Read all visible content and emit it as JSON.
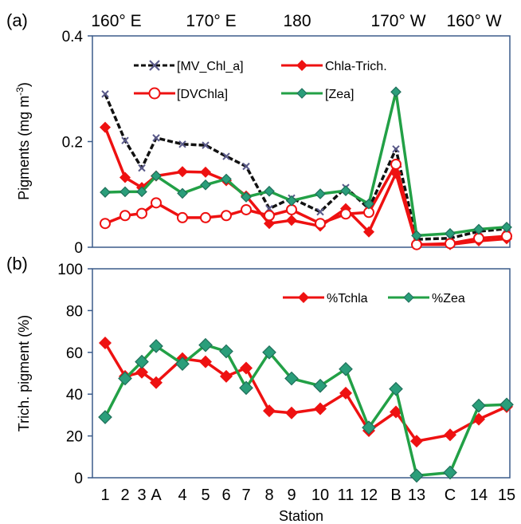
{
  "figure": {
    "top_axis_labels": [
      "160° E",
      "170° E",
      "180",
      "170° W",
      "160° W"
    ],
    "x_categories": [
      "1",
      "2",
      "3",
      "A",
      "4",
      "5",
      "6",
      "7",
      "8",
      "9",
      "10",
      "11",
      "12",
      "B",
      "13",
      "C",
      "14",
      "15"
    ],
    "xlabel": "Station",
    "colors": {
      "black": "#111111",
      "red": "#ee1111",
      "green": "#22a046",
      "cross": "#5a5a8a",
      "axis": "#3b5b8a"
    }
  },
  "chart_data": [
    {
      "type": "line",
      "panel": "(a)",
      "ylabel": "Pigments (mg m",
      "ylabel_sup": "-3",
      "ylabel_end": ")",
      "ylim": [
        0,
        0.4
      ],
      "yticks": [
        "0",
        "0.2",
        "0.4"
      ],
      "x": [
        "1",
        "2",
        "3",
        "A",
        "4",
        "5",
        "6",
        "7",
        "8",
        "9",
        "10",
        "11",
        "12",
        "B",
        "13",
        "C",
        "14",
        "15"
      ],
      "series": [
        {
          "name": "[MV_Chl_a]",
          "style": "black-dash-cross",
          "values": [
            0.29,
            0.202,
            0.15,
            0.207,
            0.195,
            0.193,
            0.172,
            0.153,
            0.073,
            0.093,
            0.067,
            0.113,
            0.073,
            0.186,
            0.015,
            0.017,
            0.03,
            0.035
          ]
        },
        {
          "name": "Chla-Trich.",
          "style": "red-diamond",
          "values": [
            0.227,
            0.132,
            0.113,
            0.135,
            0.143,
            0.142,
            0.126,
            0.097,
            0.045,
            0.051,
            0.04,
            0.073,
            0.029,
            0.14,
            0.005,
            0.005,
            0.012,
            0.016
          ]
        },
        {
          "name": "[DVChla]",
          "style": "red-open-circle",
          "values": [
            0.045,
            0.06,
            0.064,
            0.084,
            0.056,
            0.056,
            0.06,
            0.071,
            0.06,
            0.071,
            0.045,
            0.063,
            0.066,
            0.157,
            0.005,
            0.007,
            0.017,
            0.021
          ]
        },
        {
          "name": "[Zea]",
          "style": "green-diamond",
          "values": [
            0.104,
            0.105,
            0.105,
            0.135,
            0.102,
            0.118,
            0.129,
            0.095,
            0.106,
            0.088,
            0.101,
            0.107,
            0.082,
            0.294,
            0.022,
            0.026,
            0.034,
            0.038
          ]
        }
      ]
    },
    {
      "type": "line",
      "panel": "(b)",
      "ylabel": "Trich. pigment (%)",
      "ylim": [
        0,
        100
      ],
      "yticks": [
        "0",
        "20",
        "40",
        "60",
        "80",
        "100"
      ],
      "x": [
        "1",
        "2",
        "3",
        "A",
        "4",
        "5",
        "6",
        "7",
        "8",
        "9",
        "10",
        "11",
        "12",
        "B",
        "13",
        "C",
        "14",
        "15"
      ],
      "series": [
        {
          "name": "%Tchla",
          "style": "red-diamond",
          "values": [
            64.5,
            48.5,
            50.5,
            45.5,
            57,
            55.5,
            48.5,
            52.5,
            32,
            31,
            33,
            40.5,
            22.5,
            31.5,
            17.5,
            20.5,
            28,
            34
          ]
        },
        {
          "name": "%Zea",
          "style": "green-diamond",
          "values": [
            29,
            47.5,
            55.5,
            63,
            54.5,
            63.5,
            60.5,
            43,
            60,
            47.5,
            44,
            52,
            24,
            42.5,
            1,
            2.5,
            34.5,
            35
          ]
        }
      ]
    }
  ]
}
